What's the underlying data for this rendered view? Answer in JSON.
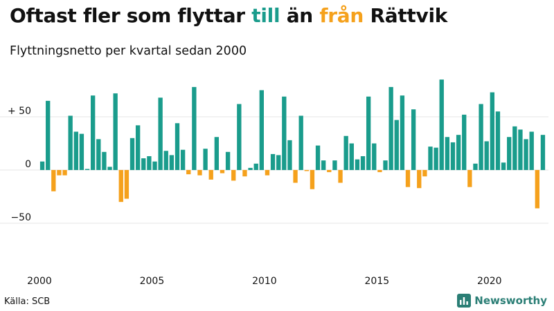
{
  "title": {
    "part1": "Oftast fler som flyttar ",
    "part2": "till",
    "part3": " än ",
    "part4": "från",
    "part5": " Rättvik"
  },
  "subtitle": "Flyttningsnetto per kvartal sedan 2000",
  "source": "Källa: SCB",
  "brand": "Newsworthy",
  "colors": {
    "positive": "#1a9c8c",
    "negative": "#f5a11c",
    "till": "#1a9c8c",
    "fran": "#f5a11c",
    "gridline": "#e6e6e6",
    "brand": "#2a7e75"
  },
  "chart_data": {
    "type": "bar",
    "title": "",
    "xlabel": "",
    "ylabel": "",
    "ylim": [
      -80,
      90
    ],
    "y_ticks": [
      {
        "value": 50,
        "label": "+ 50"
      },
      {
        "value": 0,
        "label": "0"
      },
      {
        "value": -50,
        "label": "−50"
      }
    ],
    "x_ticks": [
      {
        "year": 2000,
        "label": "2000"
      },
      {
        "year": 2005,
        "label": "2005"
      },
      {
        "year": 2010,
        "label": "2010"
      },
      {
        "year": 2015,
        "label": "2015"
      },
      {
        "year": 2020,
        "label": "2020"
      }
    ],
    "start_year": 2000,
    "grid": true,
    "values": [
      8,
      65,
      -20,
      -5,
      -5,
      51,
      36,
      34,
      1,
      70,
      29,
      17,
      3,
      72,
      -30,
      -27,
      30,
      42,
      11,
      13,
      8,
      68,
      18,
      14,
      44,
      19,
      -4,
      78,
      -5,
      20,
      -9,
      31,
      -3,
      17,
      -10,
      62,
      -6,
      2,
      6,
      75,
      -5,
      15,
      14,
      69,
      28,
      -12,
      51,
      -1,
      -18,
      23,
      9,
      -2,
      9,
      -12,
      32,
      25,
      10,
      13,
      69,
      25,
      -2,
      9,
      78,
      47,
      70,
      -16,
      57,
      -17,
      -6,
      22,
      21,
      85,
      31,
      26,
      33,
      52,
      -16,
      6,
      62,
      27,
      73,
      55,
      7,
      31,
      41,
      38,
      29,
      36,
      -36,
      33
    ]
  }
}
